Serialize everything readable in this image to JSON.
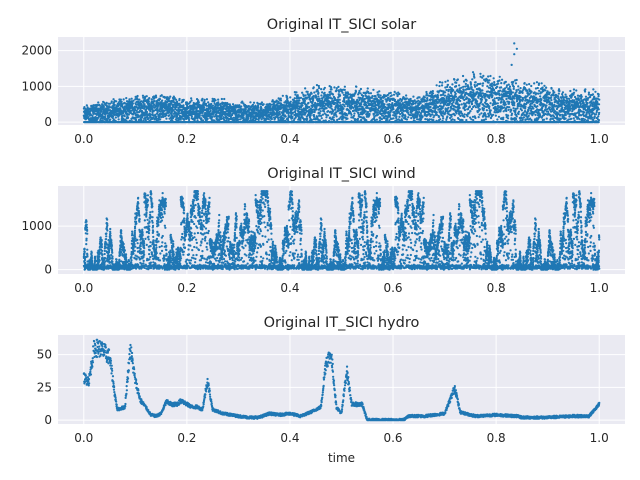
{
  "chart_data": [
    {
      "type": "scatter",
      "title": "Original IT_SICI solar",
      "xlabel": "",
      "ylabel": "",
      "xlim": [
        -0.05,
        1.05
      ],
      "ylim": [
        -80,
        2380
      ],
      "xticks": [
        0.0,
        0.2,
        0.4,
        0.6,
        0.8,
        1.0
      ],
      "xtick_labels": [
        "0.0",
        "0.2",
        "0.4",
        "0.6",
        "0.8",
        "1.0"
      ],
      "yticks": [
        0,
        1000,
        2000
      ],
      "ytick_labels": [
        "0",
        "1000",
        "2000"
      ],
      "grid": true,
      "color": "#1f77b4",
      "envelope": [
        [
          0.0,
          500
        ],
        [
          0.05,
          650
        ],
        [
          0.1,
          780
        ],
        [
          0.15,
          820
        ],
        [
          0.2,
          700
        ],
        [
          0.25,
          720
        ],
        [
          0.3,
          600
        ],
        [
          0.35,
          600
        ],
        [
          0.4,
          850
        ],
        [
          0.45,
          1080
        ],
        [
          0.5,
          1050
        ],
        [
          0.55,
          1000
        ],
        [
          0.6,
          900
        ],
        [
          0.65,
          800
        ],
        [
          0.7,
          1200
        ],
        [
          0.75,
          1450
        ],
        [
          0.8,
          1380
        ],
        [
          0.85,
          1250
        ],
        [
          0.9,
          1100
        ],
        [
          0.95,
          950
        ],
        [
          1.0,
          920
        ]
      ],
      "outliers": [
        [
          0.835,
          2200
        ],
        [
          0.835,
          1900
        ],
        [
          0.83,
          1600
        ],
        [
          0.84,
          2050
        ]
      ]
    },
    {
      "type": "scatter",
      "title": "Original IT_SICI wind",
      "xlabel": "",
      "ylabel": "",
      "xlim": [
        -0.05,
        1.05
      ],
      "ylim": [
        -100,
        1920
      ],
      "xticks": [
        0.0,
        0.2,
        0.4,
        0.6,
        0.8,
        1.0
      ],
      "xtick_labels": [
        "0.0",
        "0.2",
        "0.4",
        "0.6",
        "0.8",
        "1.0"
      ],
      "yticks": [
        0,
        1000
      ],
      "ytick_labels": [
        "0",
        "1000"
      ],
      "grid": true,
      "color": "#1f77b4",
      "typical_max": 1800
    },
    {
      "type": "scatter",
      "title": "Original IT_SICI hydro",
      "xlabel": "time",
      "ylabel": "",
      "xlim": [
        -0.05,
        1.05
      ],
      "ylim": [
        -3,
        65
      ],
      "xticks": [
        0.0,
        0.2,
        0.4,
        0.6,
        0.8,
        1.0
      ],
      "xtick_labels": [
        "0.0",
        "0.2",
        "0.4",
        "0.6",
        "0.8",
        "1.0"
      ],
      "yticks": [
        0,
        25,
        50
      ],
      "ytick_labels": [
        "0",
        "25",
        "50"
      ],
      "grid": true,
      "color": "#1f77b4",
      "profile": [
        [
          0.0,
          32
        ],
        [
          0.01,
          30
        ],
        [
          0.02,
          55
        ],
        [
          0.03,
          55
        ],
        [
          0.04,
          52
        ],
        [
          0.05,
          48
        ],
        [
          0.055,
          35
        ],
        [
          0.06,
          20
        ],
        [
          0.065,
          8
        ],
        [
          0.08,
          10
        ],
        [
          0.09,
          55
        ],
        [
          0.1,
          30
        ],
        [
          0.11,
          15
        ],
        [
          0.12,
          10
        ],
        [
          0.13,
          4
        ],
        [
          0.14,
          3
        ],
        [
          0.15,
          5
        ],
        [
          0.16,
          14
        ],
        [
          0.17,
          12
        ],
        [
          0.18,
          12
        ],
        [
          0.19,
          15
        ],
        [
          0.2,
          12
        ],
        [
          0.21,
          10
        ],
        [
          0.22,
          10
        ],
        [
          0.23,
          8
        ],
        [
          0.24,
          30
        ],
        [
          0.25,
          8
        ],
        [
          0.27,
          5
        ],
        [
          0.3,
          3
        ],
        [
          0.32,
          2
        ],
        [
          0.34,
          2
        ],
        [
          0.36,
          5
        ],
        [
          0.38,
          4
        ],
        [
          0.4,
          5
        ],
        [
          0.42,
          3
        ],
        [
          0.44,
          6
        ],
        [
          0.46,
          10
        ],
        [
          0.47,
          45
        ],
        [
          0.48,
          50
        ],
        [
          0.49,
          10
        ],
        [
          0.5,
          5
        ],
        [
          0.51,
          38
        ],
        [
          0.52,
          12
        ],
        [
          0.54,
          12
        ],
        [
          0.55,
          0
        ],
        [
          0.57,
          0
        ],
        [
          0.6,
          0
        ],
        [
          0.62,
          0
        ],
        [
          0.63,
          3
        ],
        [
          0.66,
          3
        ],
        [
          0.7,
          5
        ],
        [
          0.72,
          25
        ],
        [
          0.73,
          6
        ],
        [
          0.76,
          3
        ],
        [
          0.8,
          4
        ],
        [
          0.84,
          3
        ],
        [
          0.85,
          2
        ],
        [
          0.9,
          2
        ],
        [
          0.95,
          3
        ],
        [
          0.98,
          3
        ],
        [
          1.0,
          12
        ]
      ]
    }
  ]
}
